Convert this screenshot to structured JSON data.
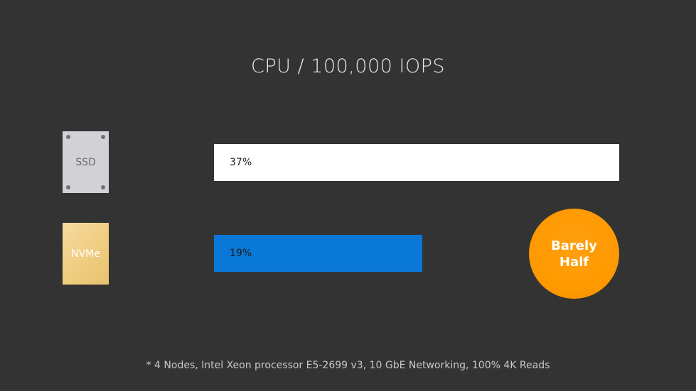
{
  "chart_data": {
    "type": "bar",
    "title": "CPU / 100,000 IOPS",
    "categories": [
      "SSD",
      "NVMe"
    ],
    "values": [
      37,
      19
    ],
    "value_labels": [
      "37%",
      "19%"
    ],
    "unit": "%",
    "orientation": "horizontal",
    "xlim": [
      0,
      37
    ],
    "grid": false,
    "annotation": [
      "Barely",
      "Half"
    ],
    "footnote": "* 4 Nodes, Intel Xeon processor E5-2699 v3, 10 GbE Networking, 100% 4K Reads",
    "colors": {
      "background": "#333333",
      "ssd_bar": "#ffffff",
      "nvme_bar": "#0a78d6",
      "badge": "#ff9a00",
      "ssd_icon": "#d2d2d6",
      "nvme_icon": "#f0cf85"
    }
  }
}
